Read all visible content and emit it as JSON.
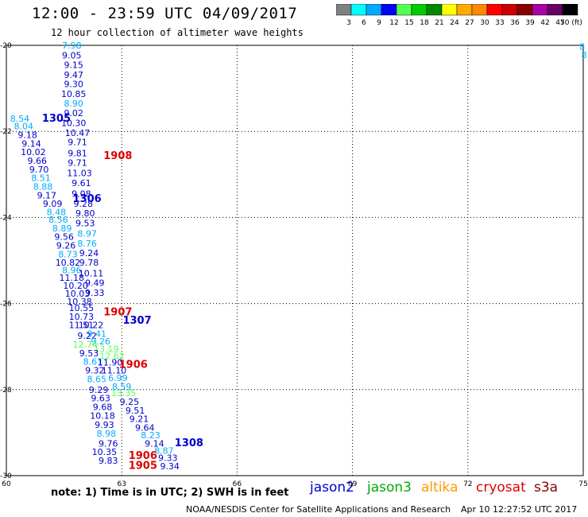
{
  "header": {
    "title": "12:00 - 23:59 UTC 04/09/2017",
    "subtitle": "12 hour collection of altimeter wave heights"
  },
  "legend": {
    "colors": [
      "#808080",
      "#00ffff",
      "#00aaff",
      "#0000ff",
      "#55ff55",
      "#00cc00",
      "#008800",
      "#ffff00",
      "#ffaa00",
      "#ff8800",
      "#ff0000",
      "#cc0000",
      "#880000",
      "#aa00aa",
      "#660066",
      "#000000"
    ],
    "labels": [
      "3",
      "6",
      "9",
      "12",
      "15",
      "18",
      "21",
      "24",
      "27",
      "30",
      "33",
      "36",
      "39",
      "42",
      "45",
      "70 (ft)"
    ]
  },
  "map": {
    "lon_ticks": [
      "60",
      "63",
      "66",
      "69",
      "72",
      "75"
    ],
    "lat_ticks": [
      "-20",
      "-22",
      "-24",
      "-26",
      "-28",
      "-30"
    ],
    "lon_range": [
      60,
      75
    ],
    "lat_range": [
      -20,
      -30
    ],
    "points": [
      {
        "t": "7.98",
        "c": "#00aaff",
        "lon": 61.7,
        "lat": -20.0
      },
      {
        "t": "9.05",
        "c": "#0000cc",
        "lon": 61.7,
        "lat": -20.23
      },
      {
        "t": "9.15",
        "c": "#0000cc",
        "lon": 61.75,
        "lat": -20.45
      },
      {
        "t": "9.47",
        "c": "#0000cc",
        "lon": 61.75,
        "lat": -20.68
      },
      {
        "t": "9.30",
        "c": "#0000cc",
        "lon": 61.75,
        "lat": -20.9
      },
      {
        "t": "10.85",
        "c": "#0000cc",
        "lon": 61.75,
        "lat": -21.13
      },
      {
        "t": "8.90",
        "c": "#00aaff",
        "lon": 61.75,
        "lat": -21.35
      },
      {
        "t": "9.02",
        "c": "#0000cc",
        "lon": 61.75,
        "lat": -21.57
      },
      {
        "t": "10.30",
        "c": "#0000cc",
        "lon": 61.75,
        "lat": -21.8
      },
      {
        "t": "8.54",
        "c": "#00aaff",
        "lon": 60.35,
        "lat": -21.7
      },
      {
        "t": "8.04",
        "c": "#00aaff",
        "lon": 60.45,
        "lat": -21.88
      },
      {
        "t": "10.47",
        "c": "#0000cc",
        "lon": 61.85,
        "lat": -22.03
      },
      {
        "t": "9.18",
        "c": "#0000cc",
        "lon": 60.55,
        "lat": -22.08
      },
      {
        "t": "9.71",
        "c": "#0000cc",
        "lon": 61.85,
        "lat": -22.25
      },
      {
        "t": "9.14",
        "c": "#0000cc",
        "lon": 60.65,
        "lat": -22.28
      },
      {
        "t": "10.02",
        "c": "#0000cc",
        "lon": 60.7,
        "lat": -22.48
      },
      {
        "t": "9.81",
        "c": "#0000cc",
        "lon": 61.85,
        "lat": -22.5
      },
      {
        "t": "9.66",
        "c": "#0000cc",
        "lon": 60.8,
        "lat": -22.68
      },
      {
        "t": "9.71",
        "c": "#0000cc",
        "lon": 61.85,
        "lat": -22.73
      },
      {
        "t": "9.70",
        "c": "#0000cc",
        "lon": 60.85,
        "lat": -22.88
      },
      {
        "t": "11.03",
        "c": "#0000cc",
        "lon": 61.9,
        "lat": -22.97
      },
      {
        "t": "8.51",
        "c": "#00aaff",
        "lon": 60.9,
        "lat": -23.08
      },
      {
        "t": "9.61",
        "c": "#0000cc",
        "lon": 61.95,
        "lat": -23.2
      },
      {
        "t": "8.88",
        "c": "#00aaff",
        "lon": 60.95,
        "lat": -23.28
      },
      {
        "t": "9.17",
        "c": "#0000cc",
        "lon": 61.05,
        "lat": -23.48
      },
      {
        "t": "9.08",
        "c": "#0000cc",
        "lon": 61.95,
        "lat": -23.45
      },
      {
        "t": "9.28",
        "c": "#0000cc",
        "lon": 62.0,
        "lat": -23.68
      },
      {
        "t": "9.09",
        "c": "#0000cc",
        "lon": 61.2,
        "lat": -23.68
      },
      {
        "t": "8.48",
        "c": "#00aaff",
        "lon": 61.3,
        "lat": -23.87
      },
      {
        "t": "9.80",
        "c": "#0000cc",
        "lon": 62.05,
        "lat": -23.9
      },
      {
        "t": "8.56",
        "c": "#00aaff",
        "lon": 61.35,
        "lat": -24.05
      },
      {
        "t": "9.53",
        "c": "#0000cc",
        "lon": 62.05,
        "lat": -24.13
      },
      {
        "t": "8.89",
        "c": "#00aaff",
        "lon": 61.45,
        "lat": -24.25
      },
      {
        "t": "8.97",
        "c": "#00aaff",
        "lon": 62.1,
        "lat": -24.37
      },
      {
        "t": "9.56",
        "c": "#0000cc",
        "lon": 61.5,
        "lat": -24.45
      },
      {
        "t": "8.76",
        "c": "#00aaff",
        "lon": 62.1,
        "lat": -24.6
      },
      {
        "t": "9.26",
        "c": "#0000cc",
        "lon": 61.55,
        "lat": -24.65
      },
      {
        "t": "9.24",
        "c": "#0000cc",
        "lon": 62.15,
        "lat": -24.82
      },
      {
        "t": "8.73",
        "c": "#00aaff",
        "lon": 61.6,
        "lat": -24.85
      },
      {
        "t": "10.82",
        "c": "#0000cc",
        "lon": 61.6,
        "lat": -25.05
      },
      {
        "t": "9.78",
        "c": "#0000cc",
        "lon": 62.15,
        "lat": -25.05
      },
      {
        "t": "8.96",
        "c": "#00aaff",
        "lon": 61.7,
        "lat": -25.22
      },
      {
        "t": "10.11",
        "c": "#0000cc",
        "lon": 62.2,
        "lat": -25.3
      },
      {
        "t": "11.18",
        "c": "#0000cc",
        "lon": 61.7,
        "lat": -25.4
      },
      {
        "t": "9.49",
        "c": "#0000cc",
        "lon": 62.3,
        "lat": -25.52
      },
      {
        "t": "10.20",
        "c": "#0000cc",
        "lon": 61.8,
        "lat": -25.58
      },
      {
        "t": "9.33",
        "c": "#0000cc",
        "lon": 62.3,
        "lat": -25.75
      },
      {
        "t": "10.03",
        "c": "#0000cc",
        "lon": 61.85,
        "lat": -25.77
      },
      {
        "t": "10.38",
        "c": "#0000cc",
        "lon": 61.9,
        "lat": -25.95
      },
      {
        "t": "10.55",
        "c": "#0000cc",
        "lon": 61.95,
        "lat": -26.1
      },
      {
        "t": "10.73",
        "c": "#0000cc",
        "lon": 61.95,
        "lat": -26.3
      },
      {
        "t": "10.22",
        "c": "#0000cc",
        "lon": 62.2,
        "lat": -26.5
      },
      {
        "t": "11.51",
        "c": "#0000cc",
        "lon": 61.95,
        "lat": -26.5
      },
      {
        "t": "9.41",
        "c": "#00aaff",
        "lon": 62.35,
        "lat": -26.7
      },
      {
        "t": "9.22",
        "c": "#0000cc",
        "lon": 62.1,
        "lat": -26.75
      },
      {
        "t": "9.26",
        "c": "#00aaff",
        "lon": 62.45,
        "lat": -26.88
      },
      {
        "t": "12.74",
        "c": "#55ff55",
        "lon": 62.05,
        "lat": -26.95
      },
      {
        "t": "13.19",
        "c": "#55ff55",
        "lon": 62.6,
        "lat": -27.05
      },
      {
        "t": "9.53",
        "c": "#0000cc",
        "lon": 62.15,
        "lat": -27.15
      },
      {
        "t": "12.62",
        "c": "#55ff55",
        "lon": 62.75,
        "lat": -27.22
      },
      {
        "t": "8.61",
        "c": "#00aaff",
        "lon": 62.25,
        "lat": -27.35
      },
      {
        "t": "11.90",
        "c": "#0000cc",
        "lon": 62.7,
        "lat": -27.37
      },
      {
        "t": "9.32",
        "c": "#0000cc",
        "lon": 62.3,
        "lat": -27.55
      },
      {
        "t": "11.10",
        "c": "#0000cc",
        "lon": 62.8,
        "lat": -27.55
      },
      {
        "t": "6.99",
        "c": "#00aaff",
        "lon": 62.9,
        "lat": -27.73
      },
      {
        "t": "8.65",
        "c": "#00aaff",
        "lon": 62.35,
        "lat": -27.75
      },
      {
        "t": "8.59",
        "c": "#00aaff",
        "lon": 63.0,
        "lat": -27.93
      },
      {
        "t": "9.29",
        "c": "#0000cc",
        "lon": 62.4,
        "lat": -28.0
      },
      {
        "t": "13.35",
        "c": "#55ff55",
        "lon": 63.05,
        "lat": -28.08
      },
      {
        "t": "9.63",
        "c": "#0000cc",
        "lon": 62.45,
        "lat": -28.2
      },
      {
        "t": "9.25",
        "c": "#0000cc",
        "lon": 63.2,
        "lat": -28.28
      },
      {
        "t": "9.68",
        "c": "#0000cc",
        "lon": 62.5,
        "lat": -28.4
      },
      {
        "t": "9.51",
        "c": "#0000cc",
        "lon": 63.35,
        "lat": -28.48
      },
      {
        "t": "10.18",
        "c": "#0000cc",
        "lon": 62.5,
        "lat": -28.6
      },
      {
        "t": "9.21",
        "c": "#0000cc",
        "lon": 63.45,
        "lat": -28.68
      },
      {
        "t": "9.93",
        "c": "#0000cc",
        "lon": 62.55,
        "lat": -28.82
      },
      {
        "t": "9.64",
        "c": "#0000cc",
        "lon": 63.6,
        "lat": -28.88
      },
      {
        "t": "8.98",
        "c": "#00aaff",
        "lon": 62.6,
        "lat": -29.02
      },
      {
        "t": "8.23",
        "c": "#00aaff",
        "lon": 63.75,
        "lat": -29.06
      },
      {
        "t": "9.14",
        "c": "#0000cc",
        "lon": 63.85,
        "lat": -29.25
      },
      {
        "t": "9.76",
        "c": "#0000cc",
        "lon": 62.65,
        "lat": -29.25
      },
      {
        "t": "8.87",
        "c": "#00aaff",
        "lon": 64.1,
        "lat": -29.42
      },
      {
        "t": "10.35",
        "c": "#0000cc",
        "lon": 62.55,
        "lat": -29.45
      },
      {
        "t": "9.33",
        "c": "#0000cc",
        "lon": 64.2,
        "lat": -29.58
      },
      {
        "t": "9.83",
        "c": "#0000cc",
        "lon": 62.65,
        "lat": -29.65
      },
      {
        "t": "9.34",
        "c": "#0000cc",
        "lon": 64.25,
        "lat": -29.78
      }
    ],
    "times": [
      {
        "t": "1305",
        "c": "#0000cc",
        "lon": 61.3,
        "lat": -21.68
      },
      {
        "t": "1908",
        "c": "#dd0000",
        "lon": 62.9,
        "lat": -22.55
      },
      {
        "t": "1306",
        "c": "#0000cc",
        "lon": 62.1,
        "lat": -23.55
      },
      {
        "t": "1907",
        "c": "#dd0000",
        "lon": 62.9,
        "lat": -26.18
      },
      {
        "t": "1307",
        "c": "#0000cc",
        "lon": 63.4,
        "lat": -26.38
      },
      {
        "t": "1906",
        "c": "#dd0000",
        "lon": 63.3,
        "lat": -27.4
      },
      {
        "t": "1308",
        "c": "#0000cc",
        "lon": 64.75,
        "lat": -29.22
      },
      {
        "t": "1906",
        "c": "#dd0000",
        "lon": 63.55,
        "lat": -29.52
      },
      {
        "t": "1905",
        "c": "#dd0000",
        "lon": 63.55,
        "lat": -29.75
      }
    ],
    "edge_points": [
      {
        "t": "8",
        "c": "#00aaff",
        "lon": 74.9,
        "lat": -20.03
      },
      {
        "t": "8",
        "c": "#00aaff",
        "lon": 74.95,
        "lat": -20.22
      }
    ]
  },
  "footer": {
    "note": "note: 1) Time is in UTC; 2) SWH is in feet",
    "satellites": [
      {
        "name": "jason2",
        "color": "#0000cc"
      },
      {
        "name": "jason3",
        "color": "#00aa00"
      },
      {
        "name": "altika",
        "color": "#ff9900"
      },
      {
        "name": "cryosat",
        "color": "#dd0000"
      },
      {
        "name": "s3a",
        "color": "#880000"
      }
    ],
    "credit": "NOAA/NESDIS Center for Satellite Applications and Research",
    "timestamp": "Apr 10 12:27:52 UTC 2017"
  }
}
